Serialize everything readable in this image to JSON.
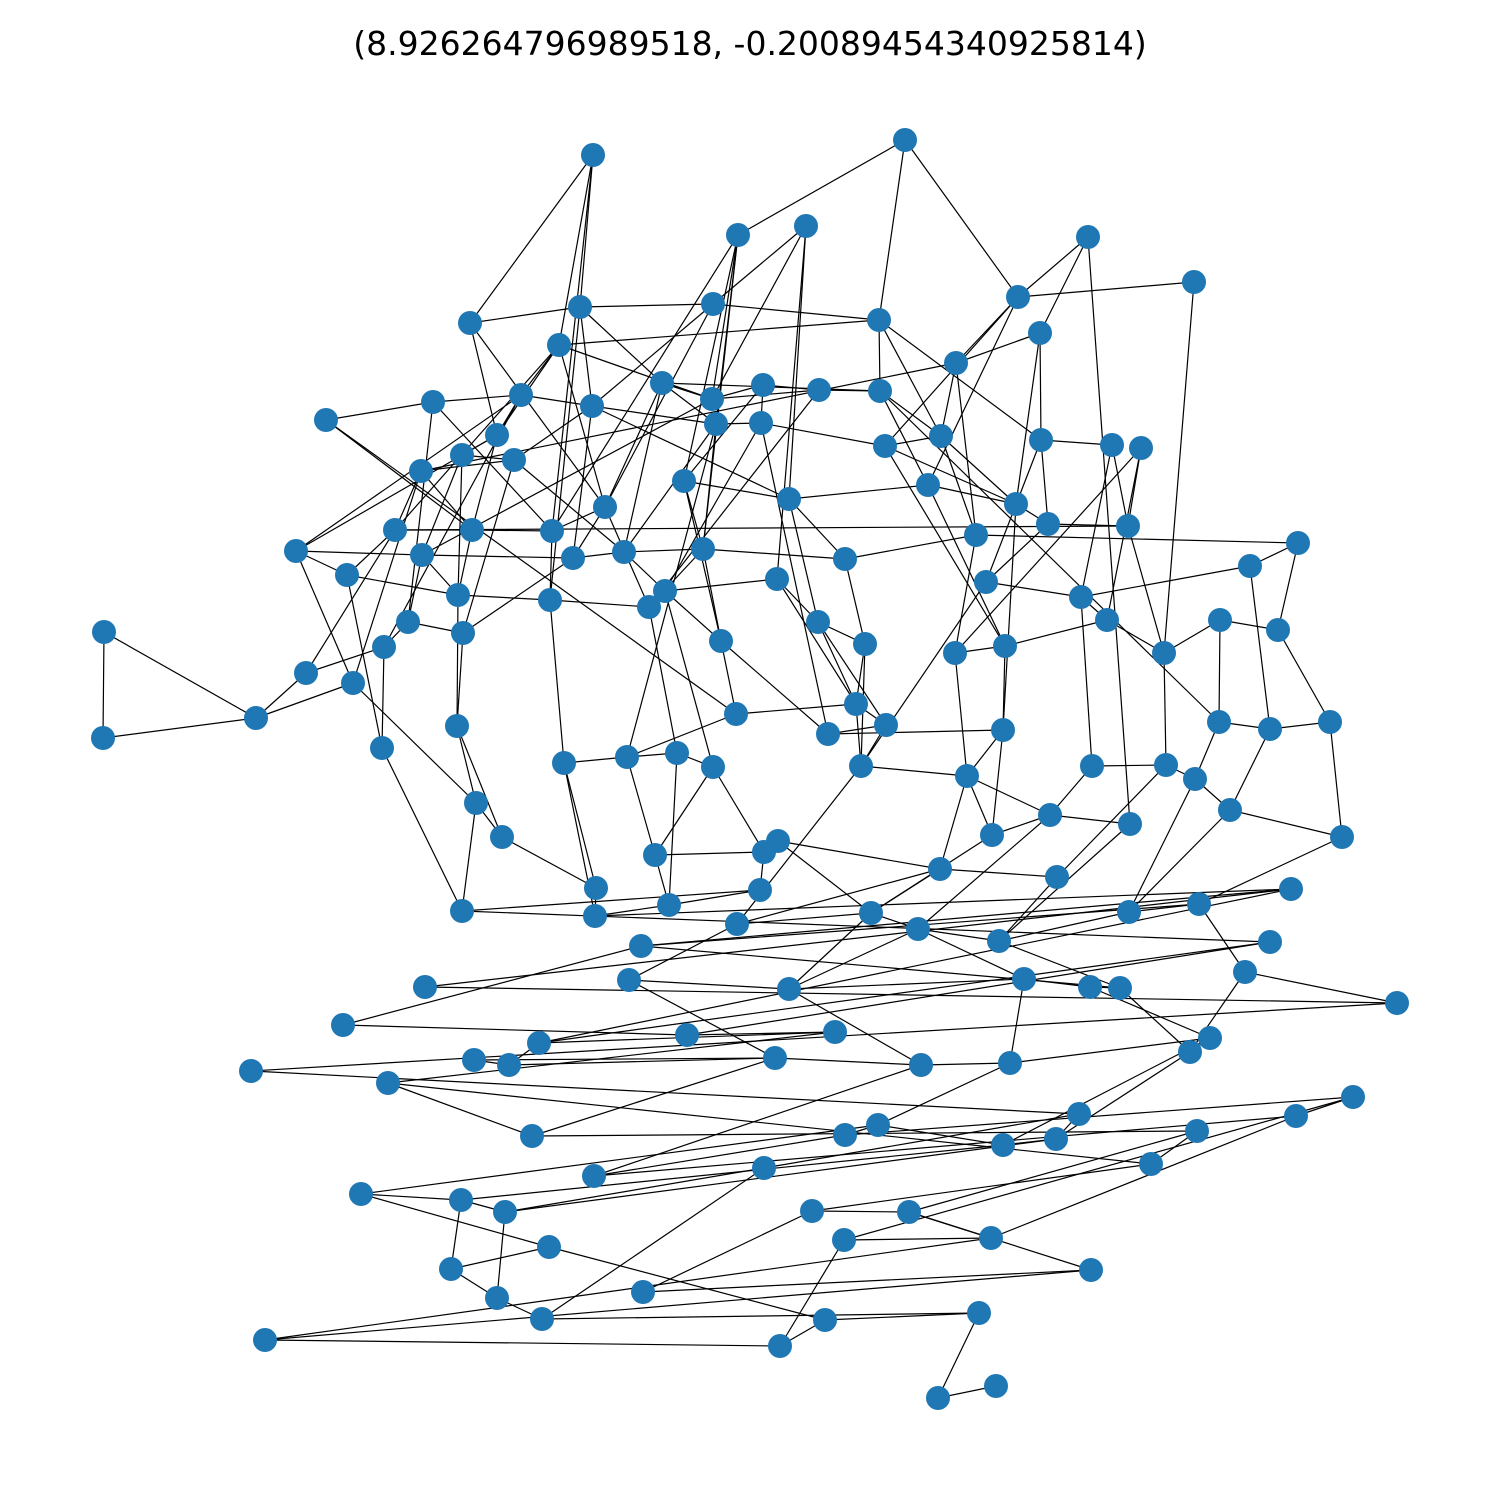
{
  "title": "(8.926264796989518, -0.20089454340925814)",
  "graph": {
    "node_color": "#1f77b4",
    "edge_color": "#000000",
    "node_count": 232
  }
}
